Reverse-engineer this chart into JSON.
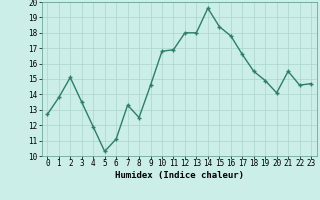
{
  "xlabel": "Humidex (Indice chaleur)",
  "x": [
    0,
    1,
    2,
    3,
    4,
    5,
    6,
    7,
    8,
    9,
    10,
    11,
    12,
    13,
    14,
    15,
    16,
    17,
    18,
    19,
    20,
    21,
    22,
    23
  ],
  "y": [
    12.7,
    13.8,
    15.1,
    13.5,
    11.9,
    10.3,
    11.1,
    13.3,
    12.5,
    14.6,
    16.8,
    16.9,
    18.0,
    18.0,
    19.6,
    18.4,
    17.8,
    16.6,
    15.5,
    14.9,
    14.1,
    15.5,
    14.6,
    14.7
  ],
  "line_color": "#2d7d6d",
  "marker": "+",
  "marker_size": 3.5,
  "bg_color": "#cceee8",
  "grid_color": "#aad4cc",
  "ylim": [
    10,
    20
  ],
  "yticks": [
    10,
    11,
    12,
    13,
    14,
    15,
    16,
    17,
    18,
    19,
    20
  ],
  "xticks": [
    0,
    1,
    2,
    3,
    4,
    5,
    6,
    7,
    8,
    9,
    10,
    11,
    12,
    13,
    14,
    15,
    16,
    17,
    18,
    19,
    20,
    21,
    22,
    23
  ],
  "tick_fontsize": 5.5,
  "xlabel_fontsize": 6.5,
  "line_width": 1.0
}
